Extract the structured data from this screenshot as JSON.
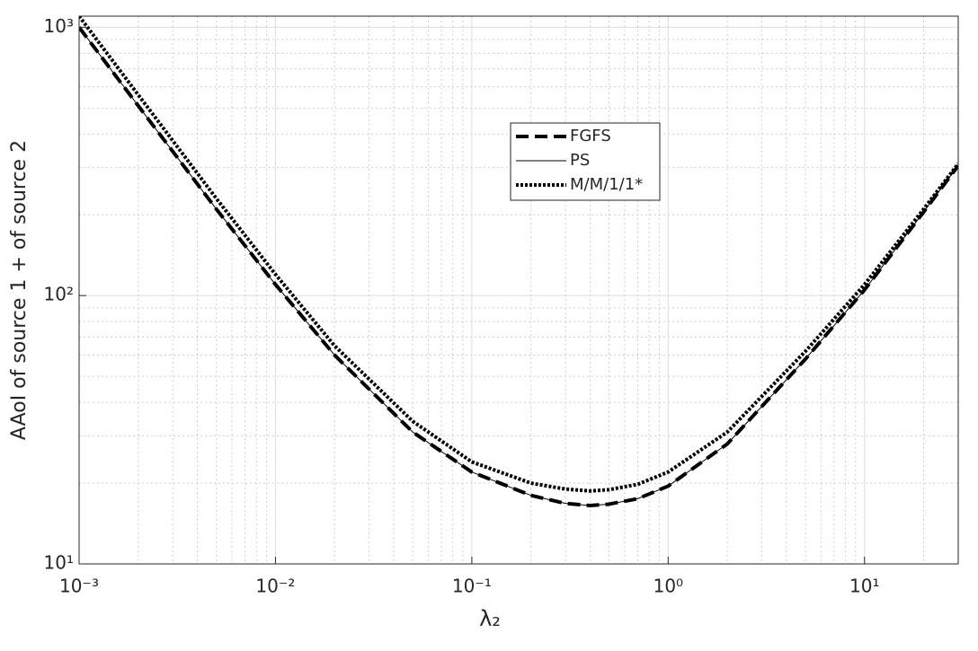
{
  "chart_data": {
    "type": "line",
    "xlabel": "λ₂",
    "ylabel": "AAoI of source 1 + of source 2",
    "x": [
      0.001,
      0.002,
      0.005,
      0.01,
      0.02,
      0.05,
      0.1,
      0.2,
      0.3,
      0.4,
      0.5,
      0.7,
      1,
      2,
      5,
      10,
      20,
      30
    ],
    "series": [
      {
        "name": "FGFS",
        "color": "#000000",
        "linestyle": "dashed",
        "linewidth": 4,
        "values": [
          1000,
          510,
          210,
          110,
          60,
          31,
          22,
          18,
          16.8,
          16.5,
          16.7,
          17.5,
          19.5,
          28,
          58,
          105,
          205,
          305
        ]
      },
      {
        "name": "PS",
        "color": "#000000",
        "linestyle": "solid",
        "linewidth": 1,
        "values": [
          1000,
          510,
          210,
          110,
          60,
          31,
          22,
          18,
          16.8,
          16.5,
          16.7,
          17.5,
          19.5,
          28,
          58,
          105,
          205,
          305
        ]
      },
      {
        "name": "M/M/1/1*",
        "color": "#000000",
        "linestyle": "dotted",
        "linewidth": 4,
        "values": [
          1100,
          560,
          230,
          120,
          65,
          34,
          24,
          20,
          19,
          18.7,
          18.9,
          19.8,
          22,
          31,
          62,
          110,
          210,
          310
        ]
      }
    ],
    "log_x": true,
    "log_y": true,
    "xlim": [
      0.001,
      30
    ],
    "ylim": [
      10,
      1100
    ],
    "xticks": [
      {
        "value": 0.001,
        "label": "10⁻³"
      },
      {
        "value": 0.01,
        "label": "10⁻²"
      },
      {
        "value": 0.1,
        "label": "10⁻¹"
      },
      {
        "value": 1,
        "label": "10⁰"
      },
      {
        "value": 10,
        "label": "10¹"
      }
    ],
    "yticks": [
      {
        "value": 10,
        "label": "10¹"
      },
      {
        "value": 100,
        "label": "10²"
      },
      {
        "value": 1000,
        "label": "10³"
      }
    ],
    "grid": true,
    "minor_grid": true,
    "legend": "upper center"
  }
}
